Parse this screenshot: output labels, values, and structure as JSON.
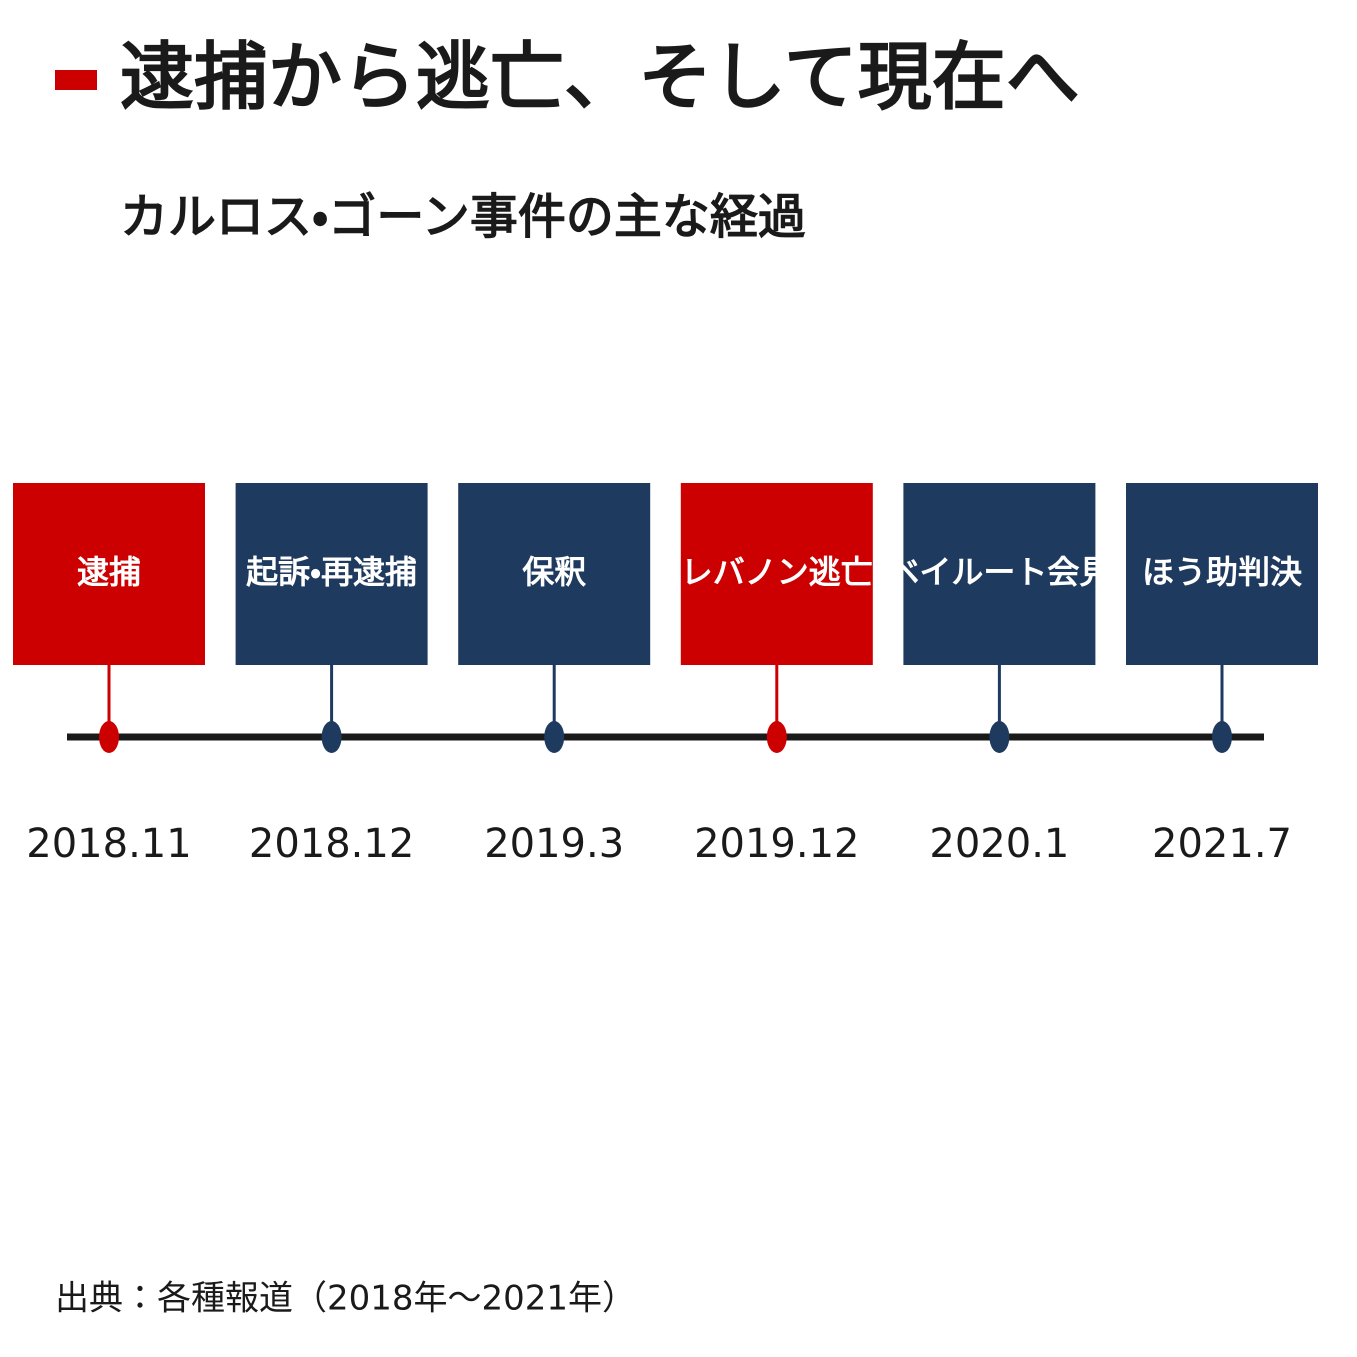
{
  "header": {
    "title": "逮捕から逃亡、そして現在へ",
    "subtitle": "カルロス・ゴーン事件の主な経過"
  },
  "events": [
    {
      "label": "逮捕",
      "date": "2018.11",
      "color": "#cc0000"
    },
    {
      "label": "起訴・再逮捕",
      "date": "2018.12",
      "color": "#1f3a5f"
    },
    {
      "label": "保釈",
      "date": "2019.3",
      "color": "#1f3a5f"
    },
    {
      "label": "レバノン逃亡",
      "date": "2019.12",
      "color": "#cc0000"
    },
    {
      "label": "ベイルート会見",
      "date": "2020.1",
      "color": "#1f3a5f"
    },
    {
      "label": "ほう助判決",
      "date": "2021.7",
      "color": "#1f3a5f"
    }
  ],
  "footer": {
    "source": "出典：各種報道（2018年～2021年）"
  }
}
